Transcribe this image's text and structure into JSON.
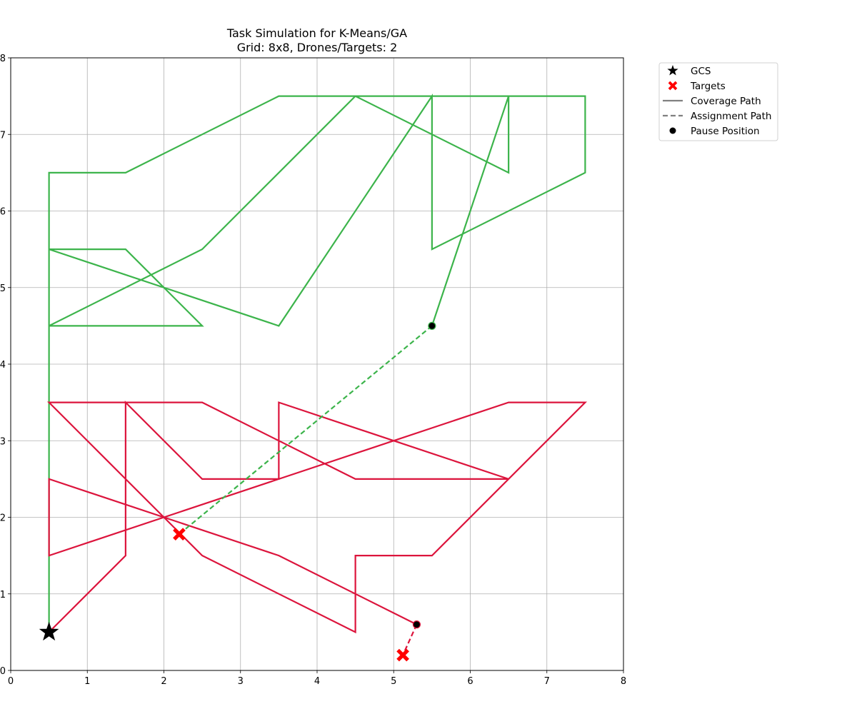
{
  "chart_data": {
    "type": "line",
    "title": "Task Simulation for K-Means/GA",
    "subtitle": "Grid: 8x8, Drones/Targets: 2",
    "xlabel": "",
    "ylabel": "",
    "xlim": [
      0,
      8
    ],
    "ylim": [
      0,
      8
    ],
    "x_ticks": [
      "0",
      "1",
      "2",
      "3",
      "4",
      "5",
      "6",
      "7",
      "8"
    ],
    "y_ticks": [
      "0",
      "1",
      "2",
      "3",
      "4",
      "5",
      "6",
      "7",
      "8"
    ],
    "grid": true,
    "legend_position": "outside-top-right",
    "legend": [
      {
        "label": "GCS",
        "marker": "star",
        "color": "#000000"
      },
      {
        "label": "Targets",
        "marker": "x",
        "color": "#ff0000"
      },
      {
        "label": "Coverage Path",
        "marker": "solid-line",
        "color": "#808080"
      },
      {
        "label": "Assignment Path",
        "marker": "dashed-line",
        "color": "#808080"
      },
      {
        "label": "Pause Position",
        "marker": "dot",
        "color": "#000000"
      }
    ],
    "gcs": {
      "x": 0.5,
      "y": 0.5
    },
    "series": [
      {
        "color": "#3cb44b",
        "coverage_path": [
          [
            0.5,
            0.5
          ],
          [
            0.5,
            4.5
          ],
          [
            2.5,
            4.5
          ],
          [
            1.5,
            5.5
          ],
          [
            0.5,
            5.5
          ],
          [
            3.5,
            4.5
          ],
          [
            5.5,
            7.5
          ],
          [
            5.5,
            5.5
          ],
          [
            7.5,
            6.5
          ],
          [
            7.5,
            7.5
          ],
          [
            6.5,
            7.5
          ],
          [
            6.5,
            6.5
          ],
          [
            4.5,
            7.5
          ],
          [
            3.5,
            7.5
          ],
          [
            1.5,
            6.5
          ],
          [
            0.5,
            6.5
          ],
          [
            0.5,
            4.5
          ],
          [
            2.5,
            5.5
          ],
          [
            4.5,
            7.5
          ],
          [
            6.5,
            7.5
          ],
          [
            5.5,
            4.5
          ]
        ],
        "pause_position": {
          "x": 5.5,
          "y": 4.5
        },
        "assignment_path": [
          [
            5.5,
            4.5
          ],
          [
            2.2,
            1.78
          ]
        ],
        "target": {
          "x": 2.2,
          "y": 1.78
        }
      },
      {
        "color": "#dc143c",
        "coverage_path": [
          [
            0.5,
            0.5
          ],
          [
            1.5,
            1.5
          ],
          [
            1.5,
            3.5
          ],
          [
            2.5,
            2.5
          ],
          [
            3.5,
            2.5
          ],
          [
            3.5,
            3.5
          ],
          [
            6.5,
            2.5
          ],
          [
            4.5,
            2.5
          ],
          [
            2.5,
            3.5
          ],
          [
            0.5,
            3.5
          ],
          [
            2.5,
            1.5
          ],
          [
            4.5,
            0.5
          ],
          [
            4.5,
            1.5
          ],
          [
            5.5,
            1.5
          ],
          [
            7.5,
            3.5
          ],
          [
            6.5,
            3.5
          ],
          [
            0.5,
            1.5
          ],
          [
            0.5,
            2.5
          ],
          [
            3.5,
            1.5
          ],
          [
            5.3,
            0.6
          ]
        ],
        "pause_position": {
          "x": 5.3,
          "y": 0.6
        },
        "assignment_path": [
          [
            5.3,
            0.6
          ],
          [
            5.12,
            0.2
          ]
        ],
        "target": {
          "x": 5.12,
          "y": 0.2
        }
      }
    ]
  }
}
